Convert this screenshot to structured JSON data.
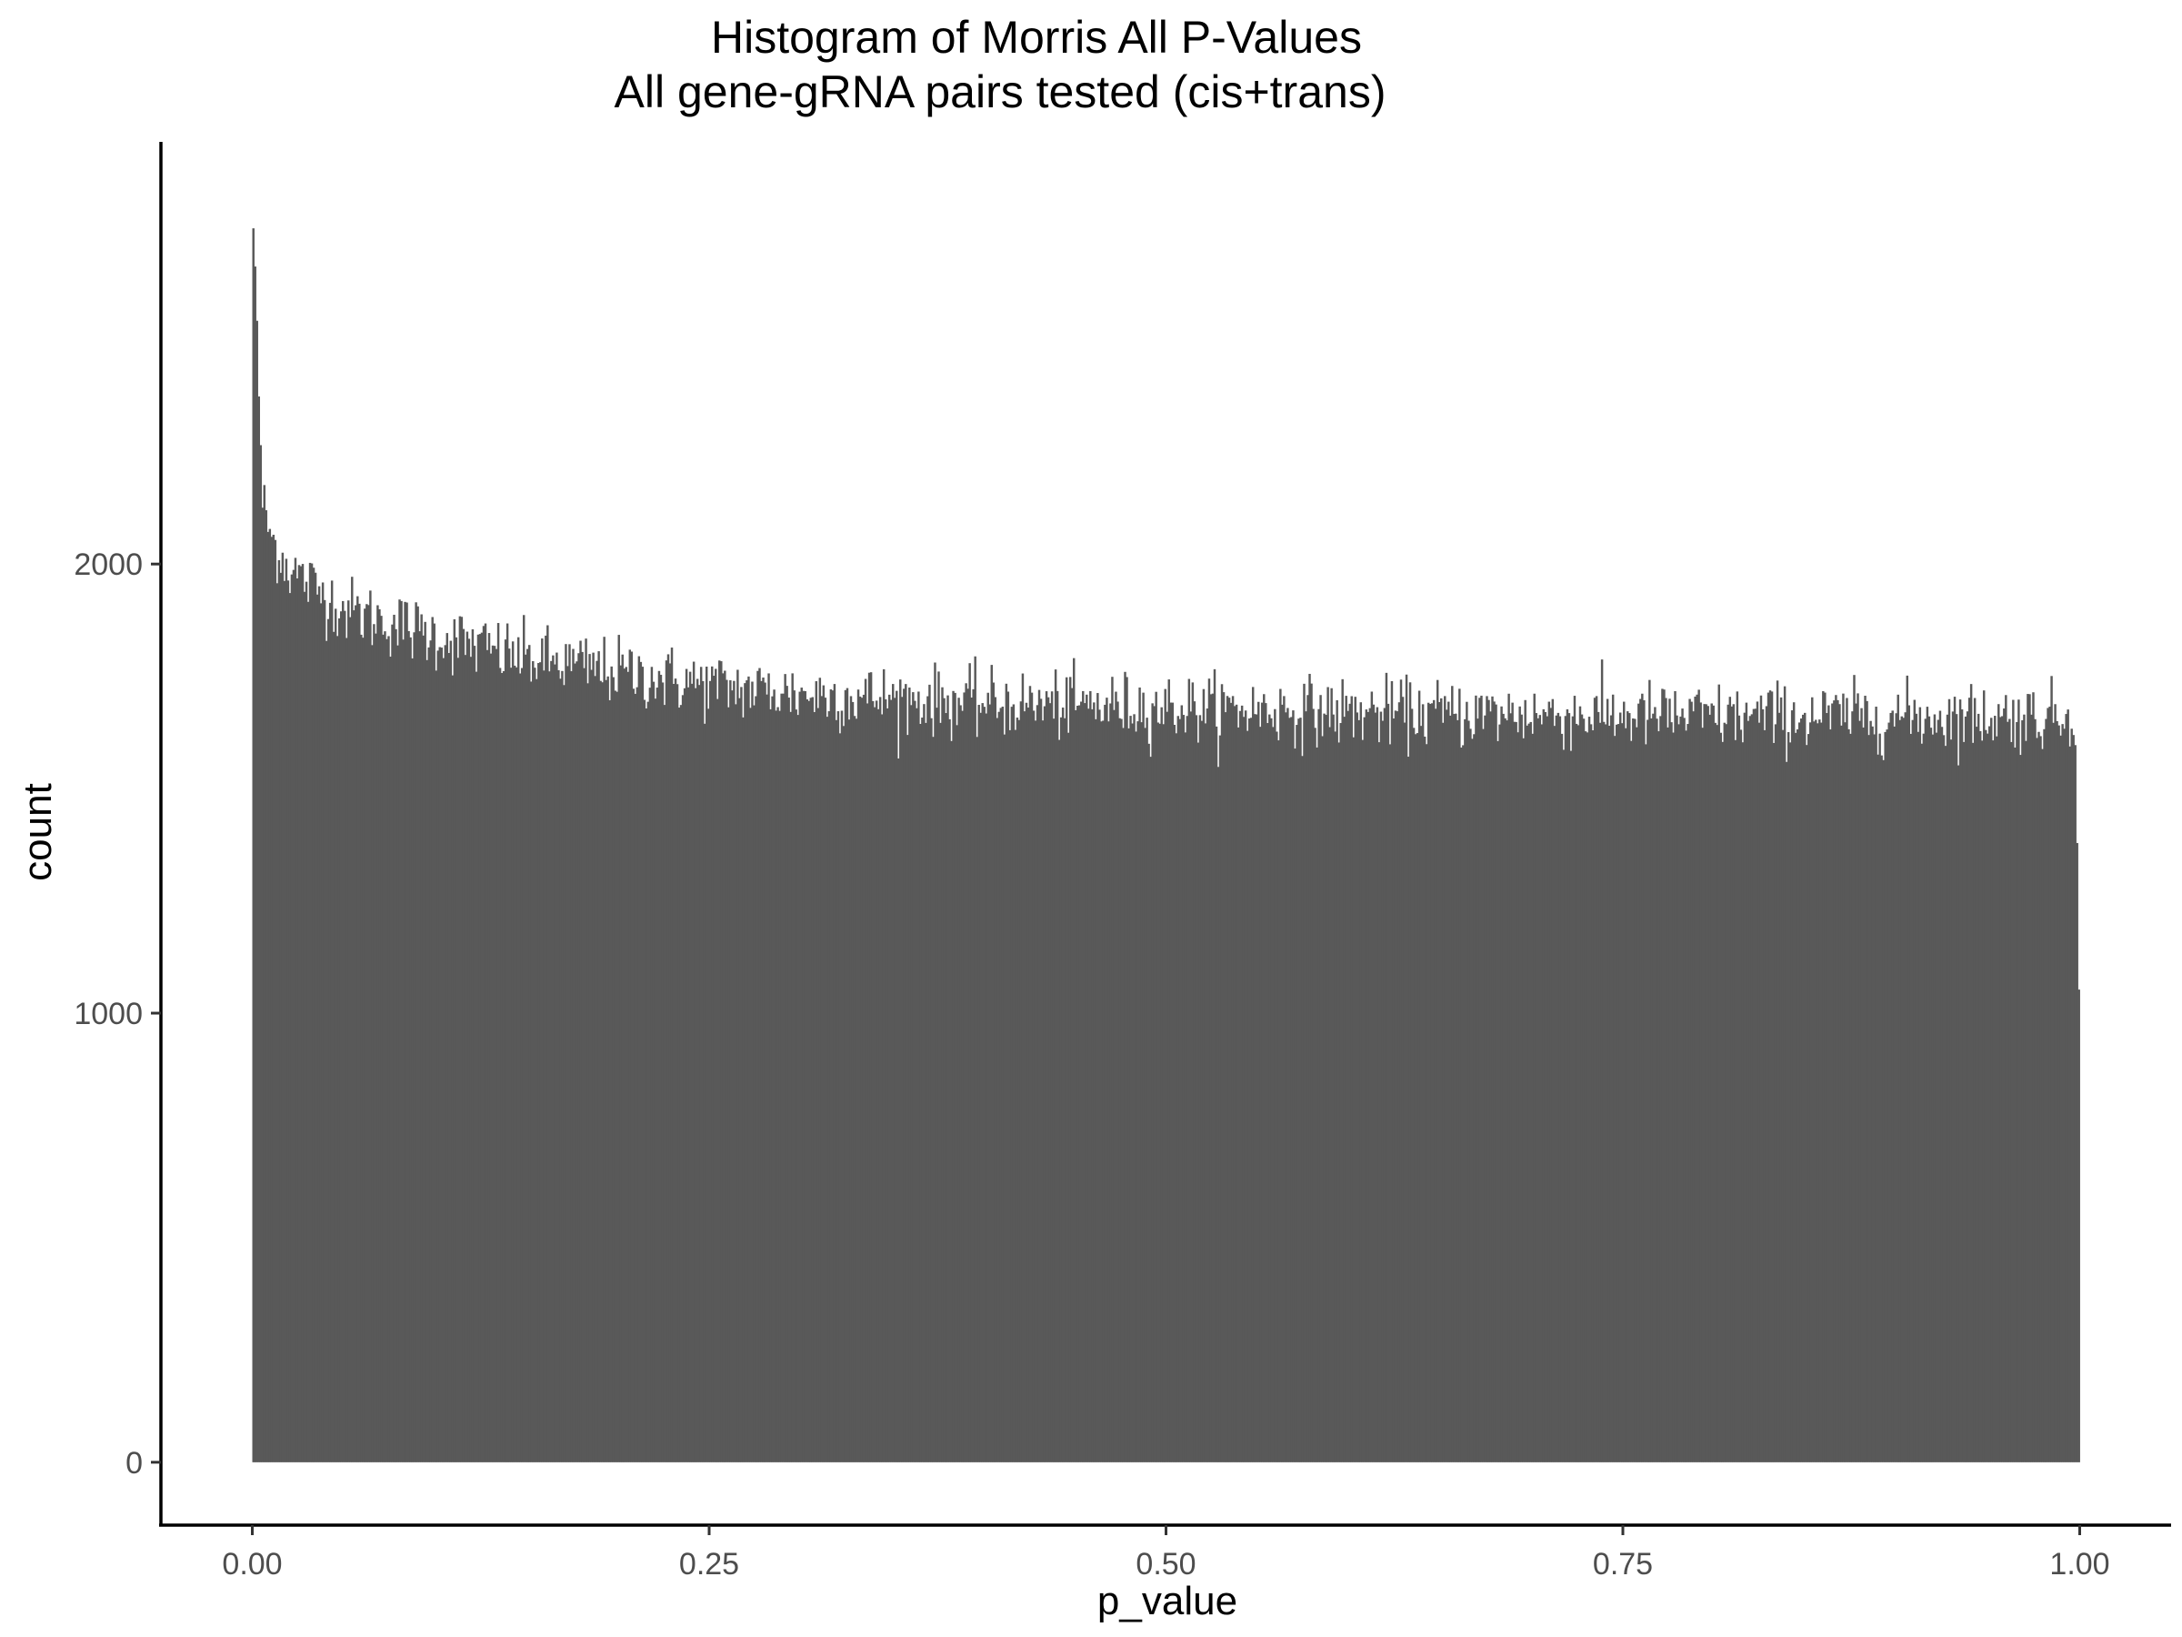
{
  "chart_data": {
    "type": "bar",
    "title": "Histogram of Morris All P-Values",
    "subtitle": "All gene-gRNA pairs tested (cis+trans)",
    "xlabel": "p_value",
    "ylabel": "count",
    "xlim": [
      -0.05,
      1.05
    ],
    "ylim": [
      -140,
      2940
    ],
    "grid": false,
    "legend": "none",
    "x_ticks": [
      {
        "value": 0.0,
        "label": "0.00"
      },
      {
        "value": 0.25,
        "label": "0.25"
      },
      {
        "value": 0.5,
        "label": "0.50"
      },
      {
        "value": 0.75,
        "label": "0.75"
      },
      {
        "value": 1.0,
        "label": "1.00"
      }
    ],
    "y_ticks": [
      {
        "value": 0,
        "label": "0"
      },
      {
        "value": 1000,
        "label": "1000"
      },
      {
        "value": 2000,
        "label": "2000"
      }
    ],
    "bins": 1000,
    "bin_range": [
      0,
      1
    ],
    "profile": {
      "x": [
        0.0,
        0.002,
        0.005,
        0.01,
        0.02,
        0.05,
        0.1,
        0.15,
        0.2,
        0.25,
        0.3,
        0.4,
        0.5,
        0.6,
        0.7,
        0.8,
        0.9,
        0.998,
        1.0
      ],
      "counts": [
        2790,
        2620,
        2150,
        2060,
        1990,
        1900,
        1840,
        1790,
        1760,
        1730,
        1710,
        1690,
        1680,
        1670,
        1665,
        1660,
        1660,
        1660,
        850
      ]
    },
    "noise_sd": 38,
    "bar_color": "#595959"
  }
}
